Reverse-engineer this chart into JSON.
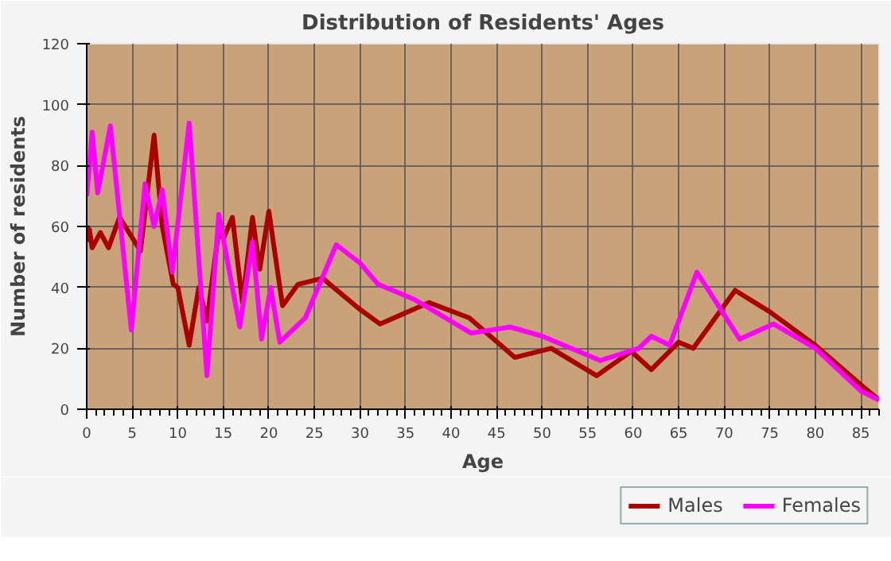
{
  "chart_data": {
    "type": "line",
    "title": "Distribution of Residents' Ages",
    "xlabel": "Age",
    "ylabel": "Number of residents",
    "xlim": [
      0,
      87
    ],
    "ylim": [
      0,
      120
    ],
    "xticks": [
      0,
      5,
      10,
      15,
      20,
      25,
      30,
      35,
      40,
      45,
      50,
      55,
      60,
      65,
      70,
      75,
      80,
      85
    ],
    "yticks": [
      0,
      20,
      40,
      60,
      80,
      100,
      120
    ],
    "grid": true,
    "legend": "bottom right",
    "marker": "none",
    "line_style": "solid",
    "series": [
      {
        "name": "Males",
        "color": "#aa0000",
        "x": [
          0,
          0.3,
          0.6,
          1.5,
          2.4,
          3.6,
          5.9,
          7.4,
          8.3,
          9.5,
          10,
          11.25,
          12.3,
          13.2,
          14.5,
          15,
          16,
          17.1,
          18.2,
          19,
          20,
          21.5,
          23.2,
          25.9,
          29.9,
          32.2,
          37.6,
          42,
          47,
          51,
          56,
          59.8,
          62,
          65,
          66.6,
          71.2,
          75,
          80,
          85,
          87
        ],
        "values": [
          55,
          59,
          53,
          58,
          53,
          63,
          52,
          90,
          60,
          41,
          40,
          21,
          40,
          29,
          59,
          56,
          63,
          35,
          63,
          46,
          65,
          34,
          41,
          43,
          33,
          28,
          35,
          30,
          17,
          20,
          11,
          19,
          13,
          22,
          20,
          39,
          32,
          21,
          8,
          3
        ]
      },
      {
        "name": "Females",
        "color": "#ff00ff",
        "x": [
          0,
          0.6,
          1.2,
          2.6,
          4.9,
          6.4,
          7.4,
          8.3,
          9.4,
          11.25,
          13.2,
          14.5,
          16.8,
          18.2,
          19.2,
          20.2,
          21.2,
          24,
          27.4,
          30,
          32,
          36,
          42.2,
          46.5,
          50,
          56.4,
          60.6,
          62,
          64,
          67,
          71.7,
          75.4,
          80,
          85,
          87
        ],
        "values": [
          70,
          91,
          71,
          93,
          26,
          74,
          60,
          72,
          45,
          94,
          11,
          64,
          27,
          55,
          23,
          40,
          22,
          30,
          54,
          48,
          41,
          36,
          25,
          27,
          24,
          16,
          20,
          24,
          21,
          45,
          23,
          28,
          20,
          6,
          3
        ]
      }
    ]
  }
}
